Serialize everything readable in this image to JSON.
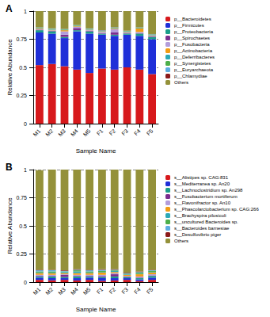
{
  "chart_data": [
    {
      "type": "bar",
      "title": "A",
      "xlabel": "Sample Name",
      "ylabel": "Relative Abundance",
      "stacked": true,
      "grid": true,
      "legend": "right",
      "categories": [
        "M1",
        "M2",
        "M3",
        "M4",
        "M5",
        "F1",
        "F2",
        "F3",
        "F4",
        "F5"
      ],
      "ylim": [
        0,
        1
      ],
      "yticks": [
        0,
        0.25,
        0.5,
        0.75,
        1
      ],
      "series": [
        {
          "name": "p__Bacteroidetes",
          "color": "#d7191c",
          "values": [
            0.52,
            0.53,
            0.51,
            0.48,
            0.45,
            0.49,
            0.48,
            0.5,
            0.48,
            0.44
          ]
        },
        {
          "name": "p__Firmicutes",
          "color": "#1f2fd8",
          "values": [
            0.29,
            0.27,
            0.25,
            0.34,
            0.35,
            0.3,
            0.3,
            0.29,
            0.3,
            0.31
          ]
        },
        {
          "name": "p__Proteobacteria",
          "color": "#1b9e8a",
          "values": [
            0.02,
            0.02,
            0.01,
            0.01,
            0.02,
            0.01,
            0.01,
            0.01,
            0.02,
            0.02
          ]
        },
        {
          "name": "p__Spirochaetes",
          "color": "#7b2d8e",
          "values": [
            0.005,
            0.005,
            0.02,
            0.02,
            0.005,
            0.005,
            0.02,
            0.005,
            0.005,
            0.005
          ]
        },
        {
          "name": "p__Fusobacteria",
          "color": "#b39ddb",
          "values": [
            0.005,
            0.005,
            0.03,
            0.01,
            0.005,
            0.01,
            0.03,
            0.005,
            0.01,
            0.005
          ]
        },
        {
          "name": "p__Actinobacteria",
          "color": "#f39c12",
          "values": [
            0.005,
            0.005,
            0.01,
            0.005,
            0.005,
            0.005,
            0.005,
            0.005,
            0.03,
            0.005
          ]
        },
        {
          "name": "p__Deferribacteres",
          "color": "#2ca9b7",
          "values": [
            0.005,
            0.005,
            0.005,
            0.005,
            0.005,
            0.005,
            0.005,
            0.005,
            0.005,
            0.005
          ]
        },
        {
          "name": "p__Synergistetes",
          "color": "#4daf4a",
          "values": [
            0.003,
            0.003,
            0.003,
            0.003,
            0.003,
            0.003,
            0.003,
            0.003,
            0.003,
            0.003
          ]
        },
        {
          "name": "p__Euryarchaeota",
          "color": "#5dade2",
          "values": [
            0.002,
            0.002,
            0.002,
            0.002,
            0.002,
            0.002,
            0.002,
            0.002,
            0.002,
            0.002
          ]
        },
        {
          "name": "p__Chlamydiae",
          "color": "#8b1a1a",
          "values": [
            0.001,
            0.001,
            0.001,
            0.001,
            0.001,
            0.001,
            0.001,
            0.001,
            0.001,
            0.001
          ]
        },
        {
          "name": "Others",
          "color": "#94913a",
          "values": [
            0.144,
            0.154,
            0.159,
            0.124,
            0.154,
            0.169,
            0.144,
            0.174,
            0.144,
            0.204
          ]
        }
      ]
    },
    {
      "type": "bar",
      "title": "B",
      "xlabel": "Sample Name",
      "ylabel": "Relative Abundance",
      "stacked": true,
      "grid": true,
      "legend": "right",
      "categories": [
        "M1",
        "M2",
        "M3",
        "M4",
        "M5",
        "F1",
        "F2",
        "F3",
        "F4",
        "F5"
      ],
      "ylim": [
        0,
        1
      ],
      "yticks": [
        0,
        0.25,
        0.5,
        0.75,
        1
      ],
      "series": [
        {
          "name": "s__Alistipes sp. CAG:831",
          "color": "#d7191c",
          "values": [
            0.02,
            0.015,
            0.02,
            0.015,
            0.02,
            0.01,
            0.015,
            0.02,
            0.01,
            0.02
          ]
        },
        {
          "name": "s__Mediterranea sp. An20",
          "color": "#1f2fd8",
          "values": [
            0.02,
            0.02,
            0.015,
            0.02,
            0.02,
            0.025,
            0.02,
            0.015,
            0.015,
            0.02
          ]
        },
        {
          "name": "s__Lachnoclostridium sp. An298",
          "color": "#1b9e8a",
          "values": [
            0.01,
            0.015,
            0.01,
            0.015,
            0.01,
            0.01,
            0.015,
            0.01,
            0.01,
            0.015
          ]
        },
        {
          "name": "s__Fusobacterium mortiferum",
          "color": "#7b2d8e",
          "values": [
            0.005,
            0.005,
            0.02,
            0.005,
            0.005,
            0.01,
            0.02,
            0.005,
            0.005,
            0.005
          ]
        },
        {
          "name": "s__Flavonifractor sp. An10",
          "color": "#b39ddb",
          "values": [
            0.01,
            0.01,
            0.005,
            0.01,
            0.01,
            0.01,
            0.01,
            0.005,
            0.01,
            0.01
          ]
        },
        {
          "name": "s__Phascolarctobacterium sp. CAG:266",
          "color": "#f39c12",
          "values": [
            0.015,
            0.015,
            0.01,
            0.015,
            0.015,
            0.02,
            0.01,
            0.01,
            0.02,
            0.015
          ]
        },
        {
          "name": "s__Brachyspira pilosicoli",
          "color": "#2ca9b7",
          "values": [
            0.005,
            0.005,
            0.01,
            0.015,
            0.005,
            0.005,
            0.01,
            0.005,
            0.005,
            0.005
          ]
        },
        {
          "name": "s__uncultured Bacteroides sp.",
          "color": "#4daf4a",
          "values": [
            0.01,
            0.01,
            0.005,
            0.01,
            0.01,
            0.01,
            0.005,
            0.005,
            0.01,
            0.01
          ]
        },
        {
          "name": "s__Bacteroides barnesiae",
          "color": "#5dade2",
          "values": [
            0.01,
            0.01,
            0.005,
            0.005,
            0.01,
            0.01,
            0.005,
            0.005,
            0.005,
            0.005
          ]
        },
        {
          "name": "s__Desulfovibrio piger",
          "color": "#8b1a1a",
          "values": [
            0.005,
            0.005,
            0.005,
            0.005,
            0.005,
            0.005,
            0.005,
            0.005,
            0.005,
            0.005
          ]
        },
        {
          "name": "Others",
          "color": "#94913a",
          "values": [
            0.885,
            0.89,
            0.895,
            0.885,
            0.89,
            0.885,
            0.885,
            0.915,
            0.905,
            0.89
          ]
        }
      ]
    }
  ]
}
